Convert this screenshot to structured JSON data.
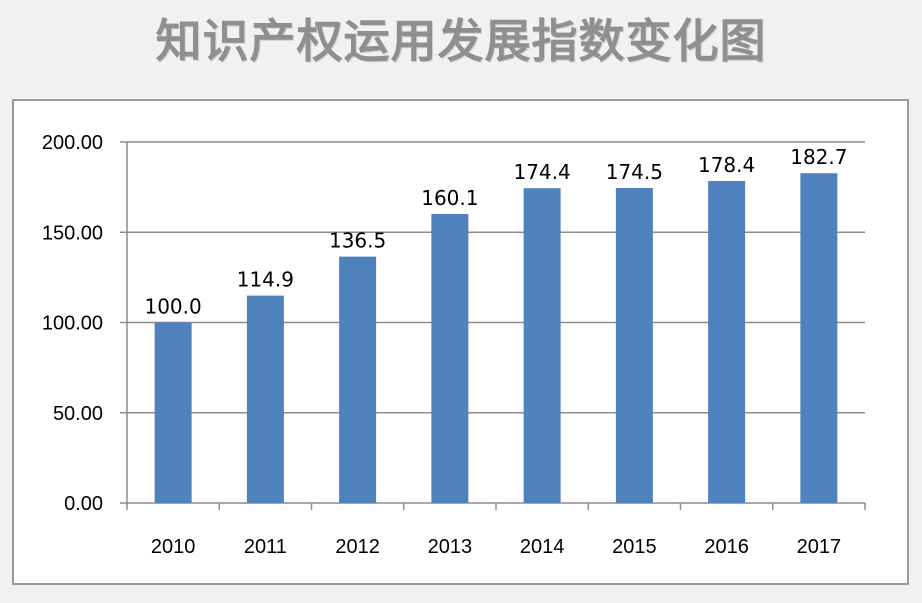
{
  "chart_data": {
    "type": "bar",
    "title": "知识产权运用发展指数变化图",
    "categories": [
      "2010",
      "2011",
      "2012",
      "2013",
      "2014",
      "2015",
      "2016",
      "2017"
    ],
    "values": [
      100.0,
      114.9,
      136.5,
      160.1,
      174.4,
      174.5,
      178.4,
      182.7
    ],
    "data_labels": [
      "100.0",
      "114.9",
      "136.5",
      "160.1",
      "174.4",
      "174.5",
      "178.4",
      "182.7"
    ],
    "ylim": [
      0,
      200
    ],
    "yticks": [
      "0.00",
      "50.00",
      "100.00",
      "150.00",
      "200.00"
    ],
    "ytick_values": [
      0,
      50,
      100,
      150,
      200
    ],
    "xlabel": "",
    "ylabel": "",
    "grid": true,
    "legend": "none",
    "bar_color": "#4f81bd"
  }
}
